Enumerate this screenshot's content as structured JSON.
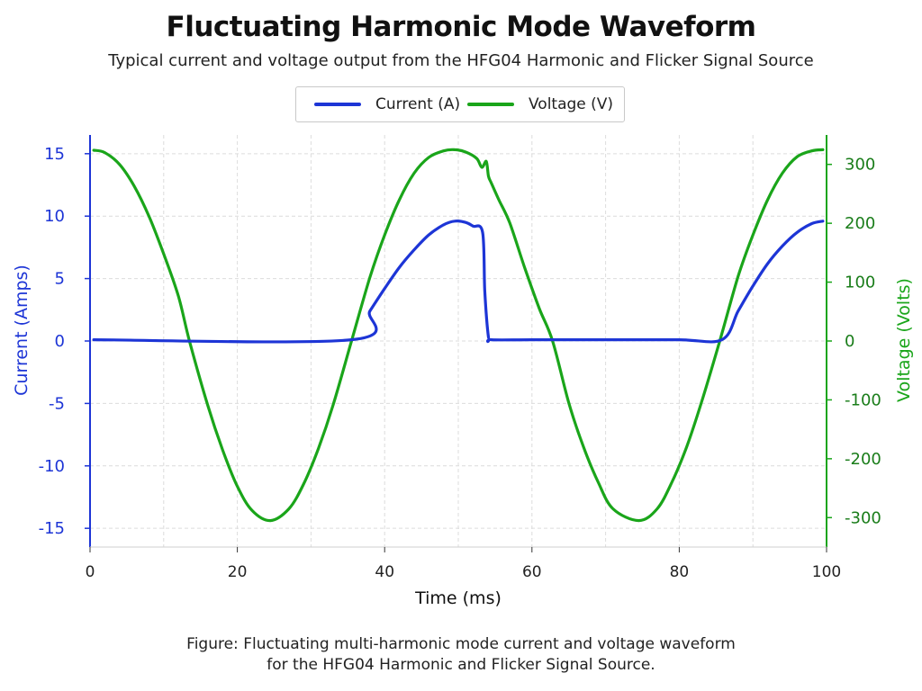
{
  "chart_data": {
    "type": "line",
    "title": "Fluctuating Harmonic Mode Waveform",
    "subtitle": "Typical current and voltage output from the HFG04 Harmonic and Flicker Signal Source",
    "xlabel": "Time (ms)",
    "ylabel_left": "Current (Amps)",
    "ylabel_right": "Voltage (Volts)",
    "xlim": [
      0,
      100
    ],
    "ylim_left": [
      -16.5,
      16.5
    ],
    "ylim_right": [
      -350,
      350
    ],
    "xticks": [
      0,
      20,
      40,
      60,
      80,
      100
    ],
    "yticks_left": [
      15,
      10,
      5,
      0,
      -5,
      -10,
      -15
    ],
    "yticks_left_labels": [
      "15",
      "10",
      "5",
      "0",
      "-5",
      "-10",
      "-15"
    ],
    "yticks_right": [
      300,
      200,
      100,
      0,
      -100,
      -200,
      -300
    ],
    "yticks_right_labels": [
      "300",
      "200",
      "100",
      "0",
      "-100",
      "-200",
      "-300"
    ],
    "grid": true,
    "legend_position": "top-center",
    "series": [
      {
        "name": "Current (A)",
        "axis": "left",
        "color": "#1d35d6",
        "x": [
          0.5,
          35.5,
          38,
          40,
          42,
          44,
          46,
          48,
          49.5,
          51,
          52,
          53.3,
          53.6,
          54.1,
          54.5,
          60,
          70,
          80,
          85.8,
          88,
          90,
          92,
          94,
          96,
          98,
          99.5
        ],
        "y": [
          0.1,
          0.1,
          2.4,
          4.2,
          5.9,
          7.3,
          8.5,
          9.3,
          9.6,
          9.5,
          9.2,
          8.7,
          4.0,
          0.3,
          0.1,
          0.1,
          0.1,
          0.1,
          0.1,
          2.4,
          4.4,
          6.2,
          7.6,
          8.7,
          9.4,
          9.6
        ]
      },
      {
        "name": "Voltage (V)",
        "axis": "right",
        "color": "#1aa51a",
        "x": [
          0.5,
          2,
          4,
          6,
          8,
          10,
          12,
          13.5,
          16,
          18,
          20,
          22,
          24.5,
          27,
          29,
          31,
          33,
          35.5,
          38,
          40,
          42,
          44,
          46,
          48,
          49.5,
          51,
          52.5,
          53.2,
          53.8,
          54.1,
          54.5,
          55.5,
          57,
          59,
          61,
          62.8,
          65,
          67,
          69,
          71,
          74.5,
          77,
          79,
          81,
          83,
          85.5,
          88,
          90,
          92,
          94,
          96,
          98,
          99.5
        ],
        "y": [
          324,
          320,
          300,
          263,
          212,
          148,
          76,
          0,
          -110,
          -185,
          -247,
          -288,
          -305,
          -285,
          -243,
          -183,
          -109,
          0,
          108,
          180,
          240,
          285,
          312,
          323,
          325,
          321,
          310,
          295,
          305,
          280,
          268,
          240,
          200,
          125,
          55,
          0,
          -105,
          -180,
          -240,
          -285,
          -305,
          -285,
          -240,
          -180,
          -105,
          0,
          110,
          180,
          240,
          285,
          313,
          323,
          325
        ]
      }
    ]
  },
  "caption": {
    "line1": "Figure: Fluctuating multi-harmonic mode current and voltage waveform",
    "line2": "for the HFG04 Harmonic and Flicker Signal Source."
  }
}
